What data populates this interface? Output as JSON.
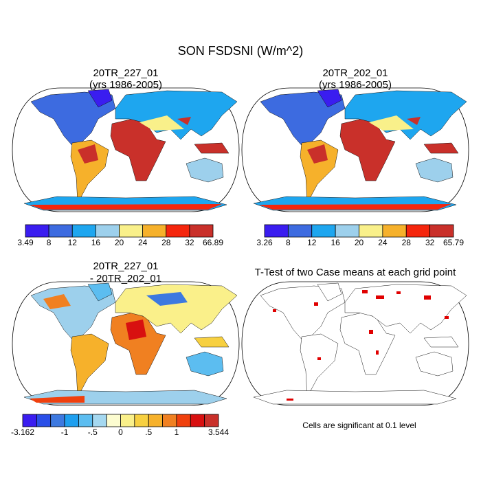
{
  "title": "SON FSDSNI (W/m^2)",
  "panels": [
    {
      "title": [
        "20TR_227_01",
        "(yrs 1986-2005)"
      ]
    },
    {
      "title": [
        "20TR_202_01",
        "(yrs 1986-2005)"
      ]
    },
    {
      "title": [
        "20TR_227_01",
        "- 20TR_202_01"
      ]
    },
    {
      "title": [
        "T-Test of two Case means at each grid point"
      ]
    }
  ],
  "colorbars": [
    {
      "colors": [
        "#3a1df0",
        "#3d6be0",
        "#1ea6ef",
        "#9dd0ec",
        "#f9f08a",
        "#f6b12b",
        "#f5260d",
        "#c9302a"
      ],
      "labels": [
        "3.49",
        "8",
        "12",
        "16",
        "20",
        "24",
        "28",
        "32",
        "66.89"
      ]
    },
    {
      "colors": [
        "#3a1df0",
        "#3d6be0",
        "#1ea6ef",
        "#9dd0ec",
        "#f9f08a",
        "#f6b12b",
        "#f5260d",
        "#c9302a"
      ],
      "labels": [
        "3.26",
        "8",
        "12",
        "16",
        "20",
        "24",
        "28",
        "32",
        "65.79"
      ]
    },
    {
      "colors": [
        "#3a1df0",
        "#2a4fe8",
        "#3d79e0",
        "#1e9fef",
        "#5cbdf0",
        "#a5d8f0",
        "#fcfcd0",
        "#faf08a",
        "#f7d040",
        "#f6b12b",
        "#f08021",
        "#f0400d",
        "#d81010",
        "#c9302a"
      ],
      "labels": [
        "-3.162",
        null,
        null,
        "-1",
        null,
        "-.5",
        null,
        "0",
        null,
        ".5",
        null,
        "1",
        null,
        null,
        "3.544"
      ]
    }
  ],
  "footnote": "Cells are significant at 0.1 level"
}
